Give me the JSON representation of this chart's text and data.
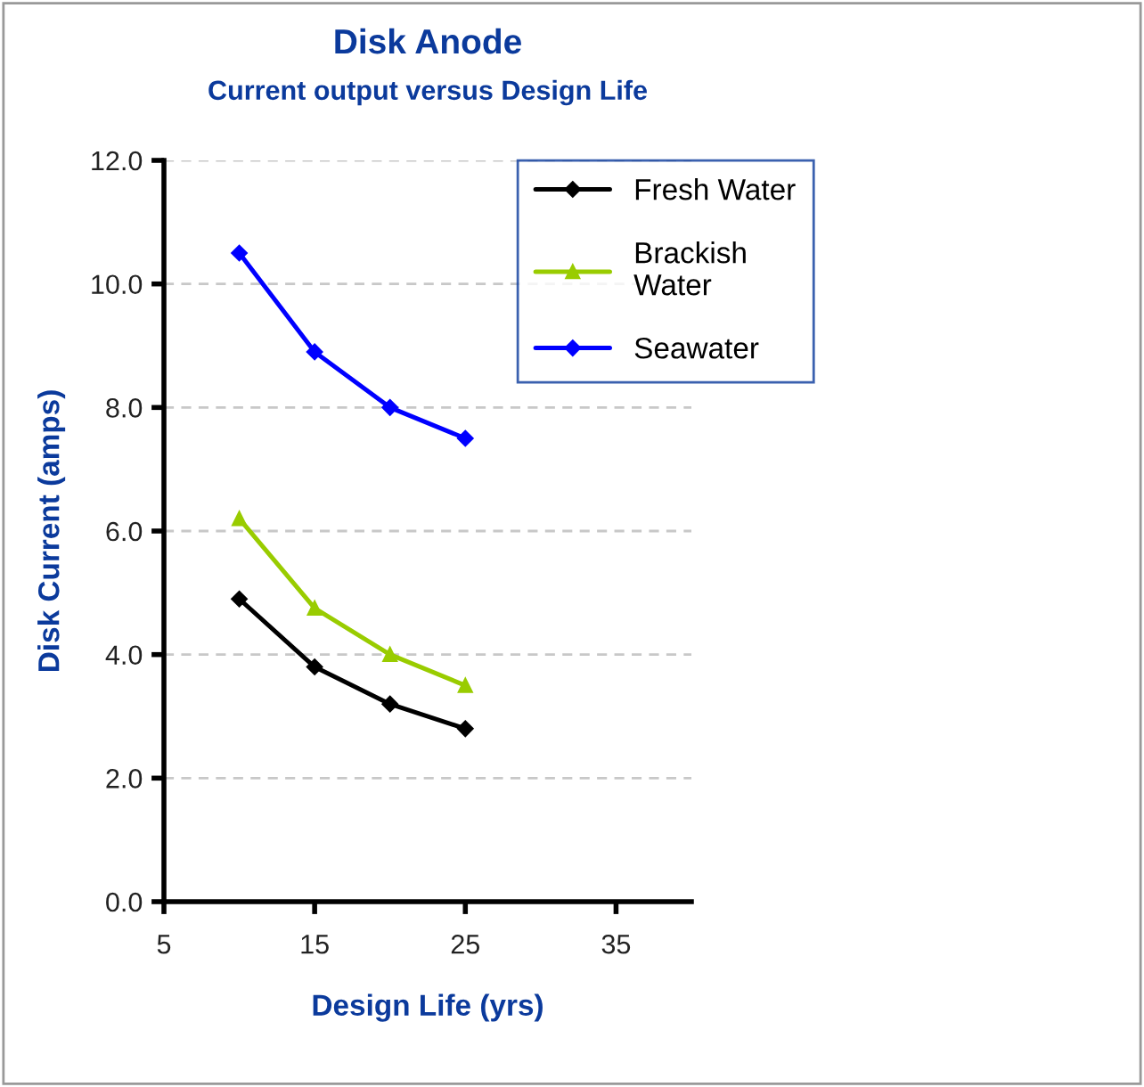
{
  "chart_data": {
    "type": "line",
    "title": "Disk Anode",
    "subtitle": "Current output versus Design Life",
    "xlabel": "Design Life (yrs)",
    "ylabel": "Disk Current (amps)",
    "x": [
      10,
      15,
      20,
      25
    ],
    "series": [
      {
        "name": "Fresh Water",
        "color": "#000000",
        "marker": "diamond",
        "values": [
          4.9,
          3.8,
          3.2,
          2.8
        ]
      },
      {
        "name": "Brackish\nWater",
        "color": "#99cc00",
        "marker": "triangle",
        "values": [
          6.2,
          4.75,
          4.0,
          3.5
        ]
      },
      {
        "name": "Seawater",
        "color": "#0000ff",
        "marker": "diamond",
        "values": [
          10.5,
          8.9,
          8.0,
          7.5
        ]
      }
    ],
    "xlim": [
      5,
      40
    ],
    "xticks": [
      5,
      15,
      25,
      35
    ],
    "ylim": [
      0,
      12
    ],
    "yticks": [
      {
        "value": 0,
        "label": "0.0"
      },
      {
        "value": 2,
        "label": "2.0"
      },
      {
        "value": 4,
        "label": "4.0"
      },
      {
        "value": 6,
        "label": "6.0"
      },
      {
        "value": 8,
        "label": "8.0"
      },
      {
        "value": 10,
        "label": "10.0"
      },
      {
        "value": 12,
        "label": "12.0"
      }
    ],
    "grid": "y",
    "legend": "top right",
    "line_style": "solid"
  }
}
